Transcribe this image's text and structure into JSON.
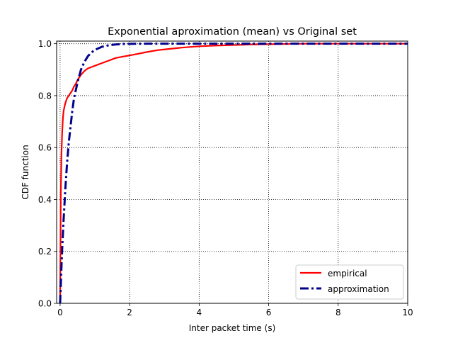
{
  "chart_data": {
    "type": "line",
    "title": "Exponential aproximation (mean) vs Original set",
    "xlabel": "Inter packet time (s)",
    "ylabel": "CDF function",
    "xlim": [
      -0.1,
      10
    ],
    "ylim": [
      0,
      1.01
    ],
    "xticks": [
      0,
      2,
      4,
      6,
      8,
      10
    ],
    "yticks": [
      0.0,
      0.2,
      0.4,
      0.6,
      0.8,
      1.0
    ],
    "xtick_labels": [
      "0",
      "2",
      "4",
      "6",
      "8",
      "10"
    ],
    "ytick_labels": [
      "0.0",
      "0.2",
      "0.4",
      "0.6",
      "0.8",
      "1.0"
    ],
    "grid": true,
    "grid_style": "dotted",
    "legend_position": "lower right",
    "series": [
      {
        "name": "empirical",
        "color": "#ff0000",
        "line_style": "solid",
        "x": [
          0.0,
          0.01,
          0.02,
          0.04,
          0.06,
          0.08,
          0.1,
          0.13,
          0.16,
          0.2,
          0.25,
          0.3,
          0.35,
          0.4,
          0.45,
          0.5,
          0.6,
          0.7,
          0.8,
          0.9,
          1.0,
          1.2,
          1.4,
          1.6,
          1.8,
          2.0,
          2.2,
          2.5,
          2.8,
          3.0,
          3.5,
          4.0,
          4.5,
          5.0,
          5.5,
          6.0,
          6.5,
          7.0,
          8.0,
          9.0,
          10.0
        ],
        "y": [
          0.0,
          0.2,
          0.42,
          0.58,
          0.66,
          0.71,
          0.74,
          0.76,
          0.775,
          0.79,
          0.8,
          0.81,
          0.82,
          0.835,
          0.845,
          0.86,
          0.88,
          0.895,
          0.905,
          0.91,
          0.915,
          0.925,
          0.935,
          0.945,
          0.95,
          0.955,
          0.96,
          0.968,
          0.975,
          0.978,
          0.985,
          0.99,
          0.993,
          0.995,
          0.997,
          0.998,
          0.999,
          1.0,
          1.0,
          1.0,
          1.0
        ]
      },
      {
        "name": "approximation",
        "color": "#00008b",
        "line_style": "dashdot",
        "x": [
          0.0,
          0.03,
          0.06,
          0.1,
          0.15,
          0.2,
          0.25,
          0.3,
          0.35,
          0.4,
          0.45,
          0.5,
          0.6,
          0.7,
          0.8,
          0.9,
          1.0,
          1.2,
          1.4,
          1.6,
          1.8,
          2.0,
          2.5,
          3.0,
          4.0,
          5.0,
          6.0,
          7.0,
          8.0,
          9.0,
          10.0
        ],
        "y": [
          0.0,
          0.11,
          0.21,
          0.32,
          0.44,
          0.54,
          0.62,
          0.68,
          0.74,
          0.79,
          0.82,
          0.85,
          0.9,
          0.93,
          0.952,
          0.966,
          0.976,
          0.988,
          0.994,
          0.997,
          0.999,
          0.9995,
          1.0,
          1.0,
          1.0,
          1.0,
          1.0,
          1.0,
          1.0,
          1.0,
          1.0
        ]
      }
    ]
  }
}
